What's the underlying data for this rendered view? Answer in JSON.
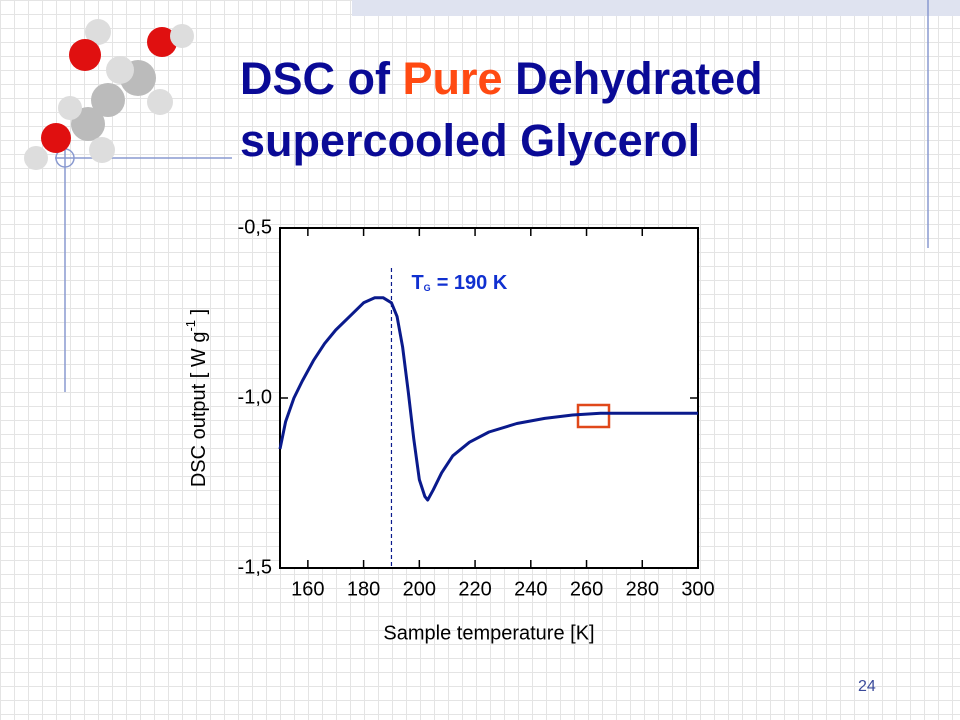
{
  "slide_title": {
    "part1": "DSC of",
    "part2": "Pure",
    "part3": "Dehydrated",
    "part4": "supercooled Glycerol"
  },
  "page_number": "24",
  "chart_data": {
    "type": "line",
    "x_label": "Sample temperature [K]",
    "y_label": {
      "text": "DSC output [ W g",
      "superscript": "-1",
      "end": " ]"
    },
    "annotation": {
      "symbol": "T",
      "subscript": "G",
      "text": "= 190 K",
      "x": 190
    },
    "x": [
      150,
      152,
      155,
      158,
      162,
      166,
      170,
      175,
      180,
      184,
      187,
      190,
      192,
      194,
      196,
      198,
      200,
      202,
      203,
      205,
      208,
      212,
      218,
      225,
      235,
      245,
      255,
      265,
      280,
      300
    ],
    "values": [
      -1.15,
      -1.07,
      -1.0,
      -0.95,
      -0.89,
      -0.84,
      -0.8,
      -0.76,
      -0.72,
      -0.705,
      -0.705,
      -0.72,
      -0.76,
      -0.85,
      -0.98,
      -1.12,
      -1.24,
      -1.29,
      -1.3,
      -1.27,
      -1.22,
      -1.17,
      -1.13,
      -1.1,
      -1.075,
      -1.06,
      -1.05,
      -1.045,
      -1.045,
      -1.045
    ],
    "color": "#0a1a8c",
    "xlim": [
      150,
      300
    ],
    "xticks": [
      160,
      180,
      200,
      220,
      240,
      260,
      280,
      300
    ],
    "ylim": [
      -1.5,
      -0.5
    ],
    "yticks": [
      {
        "value": -1.5,
        "label": "-1,5"
      },
      {
        "value": -1.0,
        "label": "-1,0"
      },
      {
        "value": -0.5,
        "label": "-0,5"
      }
    ]
  }
}
